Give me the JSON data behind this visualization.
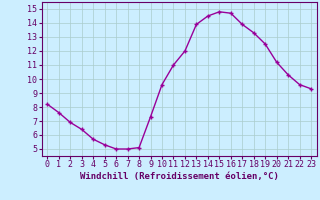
{
  "x": [
    0,
    1,
    2,
    3,
    4,
    5,
    6,
    7,
    8,
    9,
    10,
    11,
    12,
    13,
    14,
    15,
    16,
    17,
    18,
    19,
    20,
    21,
    22,
    23
  ],
  "y": [
    8.2,
    7.6,
    6.9,
    6.4,
    5.7,
    5.3,
    5.0,
    5.0,
    5.1,
    7.3,
    9.6,
    11.0,
    12.0,
    13.9,
    14.5,
    14.8,
    14.7,
    13.9,
    13.3,
    12.5,
    11.2,
    10.3,
    9.6,
    9.3
  ],
  "line_color": "#990099",
  "marker": "+",
  "marker_size": 3,
  "xlabel": "Windchill (Refroidissement éolien,°C)",
  "xlabel_fontsize": 6.5,
  "xlim": [
    -0.5,
    23.5
  ],
  "ylim": [
    4.5,
    15.5
  ],
  "yticks": [
    5,
    6,
    7,
    8,
    9,
    10,
    11,
    12,
    13,
    14,
    15
  ],
  "xticks": [
    0,
    1,
    2,
    3,
    4,
    5,
    6,
    7,
    8,
    9,
    10,
    11,
    12,
    13,
    14,
    15,
    16,
    17,
    18,
    19,
    20,
    21,
    22,
    23
  ],
  "background_color": "#cceeff",
  "grid_color": "#aacccc",
  "tick_label_fontsize": 6,
  "line_width": 1.0,
  "spine_color": "#660066",
  "label_color": "#660066"
}
